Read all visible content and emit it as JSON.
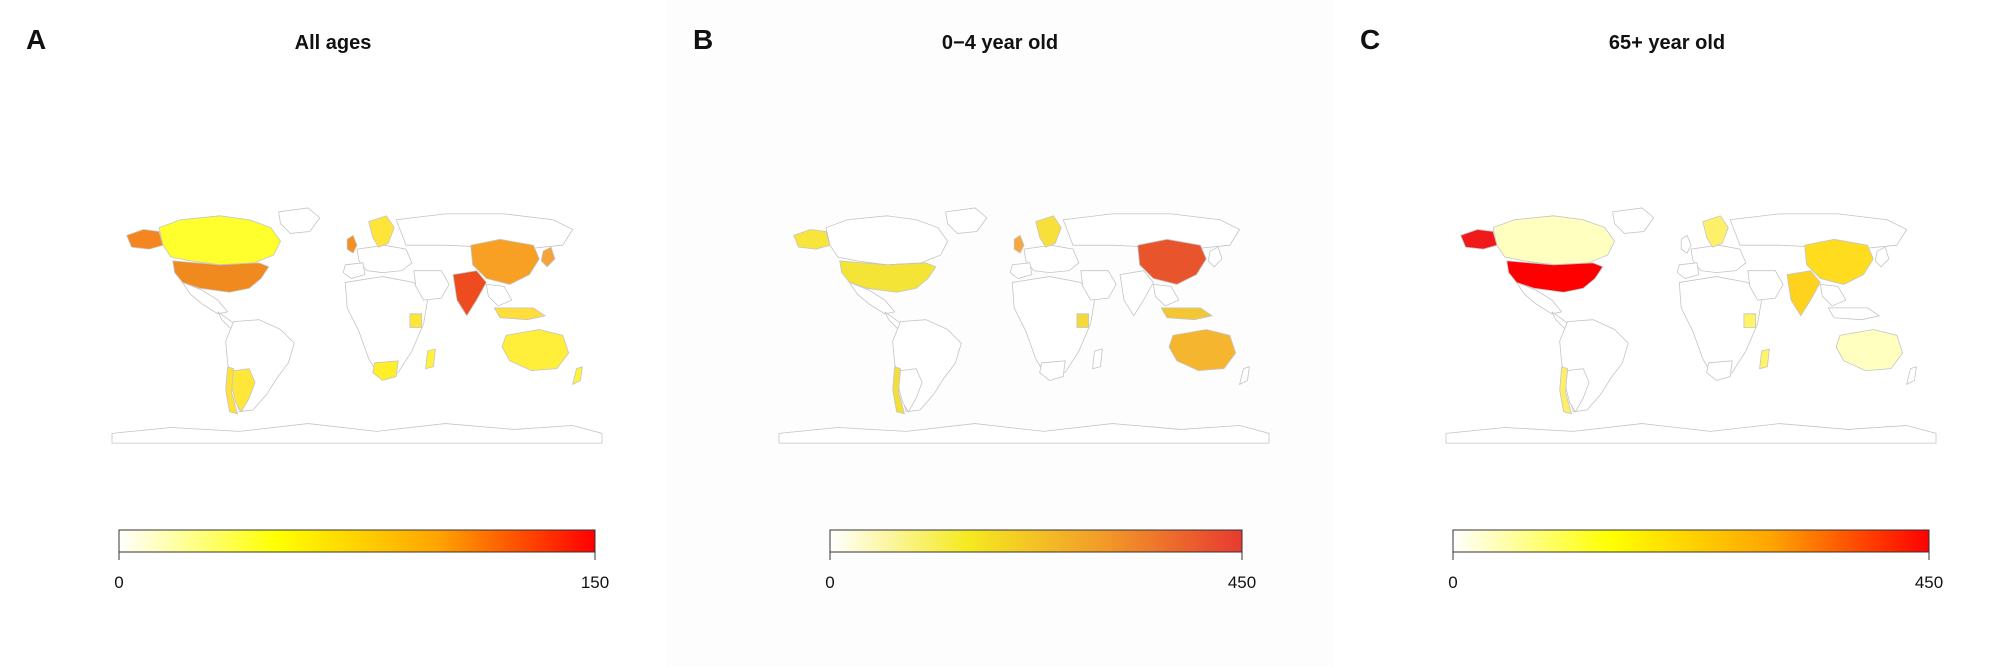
{
  "panels": [
    {
      "letter": "A",
      "title": "All ages",
      "legend": {
        "min": "0",
        "max": "150",
        "gradient": [
          "#ffffff",
          "#ffff00",
          "#ffa500",
          "#ff0000"
        ]
      },
      "country_fill": {
        "usa": "#f08a1e",
        "alaska": "#f5861f",
        "canada": "#ffff2e",
        "mexico": "#ffffff",
        "argentina": "#ffe73a",
        "chile": "#ffe13a",
        "uk": "#f29022",
        "scandinavia": "#ffe43a",
        "spain": "#ffffff",
        "india": "#ee4b1e",
        "china": "#f7a023",
        "japan": "#f6a43a",
        "australia": "#ffee3a",
        "nz": "#fff23a",
        "indonesia": "#ffdd3a",
        "south_africa": "#ffef2a",
        "kenya": "#ffe43a",
        "madagascar": "#fff23a"
      }
    },
    {
      "letter": "B",
      "title": "0−4 year old",
      "legend": {
        "min": "0",
        "max": "450",
        "gradient": [
          "#ffffff",
          "#f5ea20",
          "#f29a28",
          "#e83a30"
        ]
      },
      "country_fill": {
        "usa": "#f4e436",
        "alaska": "#f7e53c",
        "canada": "#ffffff",
        "mexico": "#ffffff",
        "argentina": "#ffffff",
        "chile": "#f2df3a",
        "uk": "#f7a740",
        "scandinavia": "#f7e03a",
        "spain": "#ffffff",
        "india": "#ffffff",
        "china": "#e8542c",
        "japan": "#ffffff",
        "australia": "#f5b52e",
        "nz": "#ffffff",
        "indonesia": "#f3c733",
        "south_africa": "#ffffff",
        "kenya": "#f5d83a",
        "madagascar": "#ffffff"
      }
    },
    {
      "letter": "C",
      "title": "65+ year old",
      "legend": {
        "min": "0",
        "max": "450",
        "gradient": [
          "#ffffff",
          "#ffff00",
          "#ffa500",
          "#ff0000"
        ]
      },
      "country_fill": {
        "usa": "#ff0000",
        "alaska": "#f11a1a",
        "canada": "#ffffc0",
        "mexico": "#ffffff",
        "argentina": "#ffffff",
        "chile": "#ffee6a",
        "uk": "#ffffff",
        "scandinavia": "#fff06a",
        "spain": "#ffffff",
        "india": "#ffd21e",
        "china": "#ffdc1e",
        "japan": "#ffffff",
        "australia": "#ffffc0",
        "nz": "#ffffff",
        "indonesia": "#ffffff",
        "south_africa": "#ffffff",
        "kenya": "#fff36a",
        "madagascar": "#fff36a"
      }
    }
  ]
}
